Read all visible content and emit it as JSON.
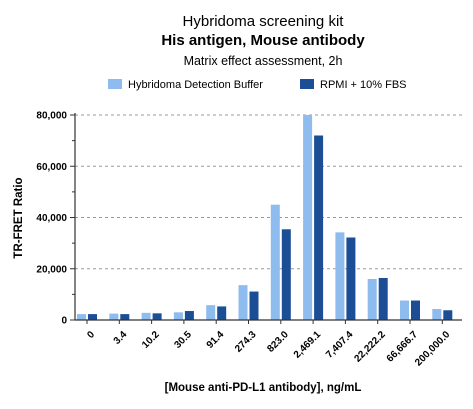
{
  "chart_data": {
    "type": "bar",
    "title": "Hybridoma screening kit",
    "subtitle": "His antigen, Mouse antibody",
    "caption": "Matrix effect assessment, 2h",
    "xlabel": "[Mouse anti-PD-L1 antibody], ng/mL",
    "ylabel": "TR-FRET Ratio",
    "ylim": [
      0,
      80000
    ],
    "yticks": [
      0,
      20000,
      40000,
      60000,
      80000
    ],
    "ytick_labels": [
      "0",
      "20,000",
      "40,000",
      "60,000",
      "80,000"
    ],
    "grid": "horizontal dashed",
    "legend": "top",
    "categories": [
      "0",
      "3.4",
      "10.2",
      "30.5",
      "91.4",
      "274.3",
      "823.0",
      "2,469.1",
      "7,407.4",
      "22,222.2",
      "66,666.7",
      "200,000.0"
    ],
    "series": [
      {
        "name": "Hybridoma Detection Buffer",
        "color": "#8fbcee",
        "values": [
          2300,
          2500,
          2800,
          3000,
          5800,
          13600,
          45000,
          80000,
          34200,
          16000,
          7600,
          4300
        ]
      },
      {
        "name": "RPMI + 10% FBS",
        "color": "#1c4e96",
        "values": [
          2300,
          2300,
          2600,
          3500,
          5300,
          11100,
          35400,
          72000,
          32200,
          16400,
          7600,
          3800
        ]
      }
    ]
  }
}
